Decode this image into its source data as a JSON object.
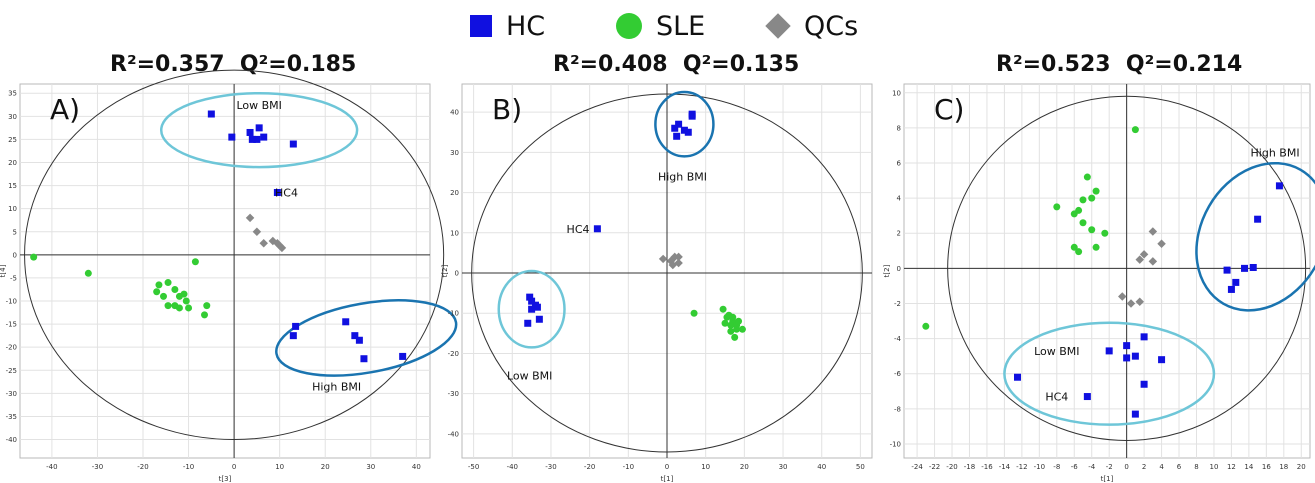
{
  "legend": {
    "items": [
      {
        "label": "HC",
        "color": "#1010e0",
        "shape": "square"
      },
      {
        "label": "SLE",
        "color": "#33cc33",
        "shape": "circle"
      },
      {
        "label": "QCs",
        "color": "#888888",
        "shape": "diamond"
      }
    ]
  },
  "chart_data": [
    {
      "type": "scatter",
      "panel_label": "A)",
      "title": "R²=0.357  Q²=0.185",
      "xlabel": "t[3]",
      "ylabel": "t[4]",
      "xlim": [
        -47,
        43
      ],
      "ylim": [
        -44,
        37
      ],
      "xticks": [
        -40,
        -30,
        -20,
        -10,
        0,
        10,
        20,
        30,
        40
      ],
      "yticks": [
        35,
        30,
        25,
        20,
        15,
        10,
        5,
        0,
        -5,
        -10,
        -15,
        -20,
        -25,
        -30,
        -35,
        -40
      ],
      "grid": true,
      "ellipse_hotelling": {
        "cx": 0,
        "cy": 0,
        "rx": 46,
        "ry": 40
      },
      "series": [
        {
          "name": "HC",
          "points": [
            [
              -5,
              30.5
            ],
            [
              -0.5,
              25.5
            ],
            [
              3.5,
              26.5
            ],
            [
              4,
              25
            ],
            [
              5.5,
              27.5
            ],
            [
              6.5,
              25.5
            ],
            [
              5,
              25
            ],
            [
              13,
              24
            ],
            [
              9.5,
              13.5
            ],
            [
              13.5,
              -15.5
            ],
            [
              13,
              -17.5
            ],
            [
              24.5,
              -14.5
            ],
            [
              26.5,
              -17.5
            ],
            [
              27.5,
              -18.5
            ],
            [
              28.5,
              -22.5
            ],
            [
              37,
              -22
            ]
          ]
        },
        {
          "name": "SLE",
          "points": [
            [
              -44,
              -0.5
            ],
            [
              -32,
              -4
            ],
            [
              -8.5,
              -1.5
            ],
            [
              -17,
              -8
            ],
            [
              -15.5,
              -9
            ],
            [
              -14.5,
              -6
            ],
            [
              -16.5,
              -6.5
            ],
            [
              -13,
              -7.5
            ],
            [
              -12,
              -9
            ],
            [
              -11,
              -8.5
            ],
            [
              -14.5,
              -11
            ],
            [
              -13,
              -11
            ],
            [
              -12,
              -11.5
            ],
            [
              -10.5,
              -10
            ],
            [
              -10,
              -11.5
            ],
            [
              -6,
              -11
            ],
            [
              -6.5,
              -13
            ]
          ]
        },
        {
          "name": "QCs",
          "points": [
            [
              3.5,
              8
            ],
            [
              5,
              5
            ],
            [
              6.5,
              2.5
            ],
            [
              8.5,
              3
            ],
            [
              9.5,
              2.5
            ],
            [
              10.5,
              1.5
            ],
            [
              10,
              2
            ]
          ]
        }
      ],
      "annotations": [
        {
          "text": "Low BMI",
          "x": 5.5,
          "y": 32.5
        },
        {
          "text": "HC4",
          "x": 11.5,
          "y": 13.5
        },
        {
          "text": "High BMI",
          "x": 22.5,
          "y": -28.5
        }
      ],
      "ellipses": [
        {
          "cx": 5.5,
          "cy": 27,
          "rx": 21.5,
          "ry": 8,
          "angle": 0,
          "color": "#6ec6d8"
        },
        {
          "cx": 29,
          "cy": -18,
          "rx": 20,
          "ry": 7.5,
          "angle": -10,
          "color": "#1a74b0"
        }
      ]
    },
    {
      "type": "scatter",
      "panel_label": "B)",
      "title": "R²=0.408  Q²=0.135",
      "xlabel": "t[1]",
      "ylabel": "t[2]",
      "xlim": [
        -53,
        53
      ],
      "ylim": [
        -46,
        47
      ],
      "xticks": [
        -50,
        -40,
        -30,
        -20,
        -10,
        0,
        10,
        20,
        30,
        40,
        50
      ],
      "yticks": [
        40,
        30,
        20,
        10,
        0,
        -10,
        -20,
        -30,
        -40
      ],
      "grid": true,
      "ellipse_hotelling": {
        "cx": 0,
        "cy": 0,
        "rx": 50.5,
        "ry": 44.5
      },
      "series": [
        {
          "name": "HC",
          "points": [
            [
              -18,
              11
            ],
            [
              2,
              36
            ],
            [
              3,
              37
            ],
            [
              2.5,
              34
            ],
            [
              4.5,
              35.5
            ],
            [
              5.5,
              35
            ],
            [
              6.5,
              39
            ],
            [
              6.5,
              39.5
            ],
            [
              -35.5,
              -6
            ],
            [
              -34,
              -8
            ],
            [
              -33.5,
              -8.5
            ],
            [
              -35,
              -9
            ],
            [
              -36,
              -12.5
            ],
            [
              -33,
              -11.5
            ],
            [
              -35,
              -7
            ]
          ]
        },
        {
          "name": "SLE",
          "points": [
            [
              7,
              -10
            ],
            [
              14.5,
              -9
            ],
            [
              15.5,
              -11
            ],
            [
              16,
              -10.5
            ],
            [
              17,
              -12
            ],
            [
              16.5,
              -13
            ],
            [
              18,
              -13
            ],
            [
              15,
              -12.5
            ],
            [
              17,
              -11
            ],
            [
              18.5,
              -12
            ],
            [
              18,
              -14
            ],
            [
              19.5,
              -14
            ],
            [
              16.5,
              -14.5
            ],
            [
              17.5,
              -16
            ]
          ]
        },
        {
          "name": "QCs",
          "points": [
            [
              -1,
              3.5
            ],
            [
              1,
              3
            ],
            [
              2,
              4
            ],
            [
              3,
              4
            ],
            [
              1.5,
              2
            ],
            [
              3,
              2.5
            ]
          ]
        }
      ],
      "annotations": [
        {
          "text": "High BMI",
          "x": 4,
          "y": 24
        },
        {
          "text": "HC4",
          "x": -23,
          "y": 11
        },
        {
          "text": "Low BMI",
          "x": -35.5,
          "y": -25.5
        }
      ],
      "ellipses": [
        {
          "cx": 4.5,
          "cy": 37,
          "rx": 7.5,
          "ry": 8,
          "angle": 0,
          "color": "#1a74b0"
        },
        {
          "cx": -35,
          "cy": -9,
          "rx": 8.5,
          "ry": 9.5,
          "angle": 0,
          "color": "#6ec6d8"
        }
      ]
    },
    {
      "type": "scatter",
      "panel_label": "C)",
      "title": "R²=0.523  Q²=0.214",
      "xlabel": "t[1]",
      "ylabel": "t[2]",
      "xlim": [
        -25.5,
        21
      ],
      "ylim": [
        -10.8,
        10.5
      ],
      "xticks": [
        -24,
        -22,
        -20,
        -18,
        -16,
        -14,
        -12,
        -10,
        -8,
        -6,
        -4,
        -2,
        0,
        2,
        4,
        6,
        8,
        10,
        12,
        14,
        16,
        18,
        20
      ],
      "yticks": [
        10,
        8,
        6,
        4,
        2,
        0,
        -2,
        -4,
        -6,
        -8,
        -10
      ],
      "grid": true,
      "ellipse_hotelling": {
        "cx": 0,
        "cy": 0,
        "rx": 20.5,
        "ry": 9.8
      },
      "series": [
        {
          "name": "HC",
          "points": [
            [
              17.5,
              4.7
            ],
            [
              15,
              2.8
            ],
            [
              11.5,
              -0.1
            ],
            [
              13.5,
              0
            ],
            [
              14.5,
              0.05
            ],
            [
              12.5,
              -0.8
            ],
            [
              12,
              -1.2
            ],
            [
              -12.5,
              -6.2
            ],
            [
              -2,
              -4.7
            ],
            [
              0,
              -4.4
            ],
            [
              2,
              -3.9
            ],
            [
              0,
              -5.1
            ],
            [
              1,
              -5
            ],
            [
              4,
              -5.2
            ],
            [
              2,
              -6.6
            ],
            [
              -4.5,
              -7.3
            ],
            [
              1,
              -8.3
            ]
          ]
        },
        {
          "name": "SLE",
          "points": [
            [
              -23,
              -3.3
            ],
            [
              1,
              7.9
            ],
            [
              -4.5,
              5.2
            ],
            [
              -8,
              3.5
            ],
            [
              -5.5,
              3.3
            ],
            [
              -6,
              3.1
            ],
            [
              -5,
              2.6
            ],
            [
              -4,
              2.2
            ],
            [
              -2.5,
              2
            ],
            [
              -6,
              1.2
            ],
            [
              -5.5,
              0.95
            ],
            [
              -3.5,
              1.2
            ],
            [
              -4,
              4
            ],
            [
              -3.5,
              4.4
            ],
            [
              -5,
              3.9
            ]
          ]
        },
        {
          "name": "QCs",
          "points": [
            [
              3,
              2.1
            ],
            [
              4,
              1.4
            ],
            [
              2,
              0.8
            ],
            [
              1.5,
              0.5
            ],
            [
              3,
              0.4
            ],
            [
              -0.5,
              -1.6
            ],
            [
              0.5,
              -2
            ],
            [
              1.5,
              -1.9
            ]
          ]
        }
      ],
      "annotations": [
        {
          "text": "High BMI",
          "x": 17,
          "y": 6.6
        },
        {
          "text": "Low BMI",
          "x": -8,
          "y": -4.7
        },
        {
          "text": "HC4",
          "x": -8,
          "y": -7.3
        }
      ],
      "ellipses": [
        {
          "cx": 15.5,
          "cy": 1.8,
          "rx": 7,
          "ry": 4.4,
          "angle": 30,
          "color": "#1a74b0"
        },
        {
          "cx": -2,
          "cy": -6,
          "rx": 12,
          "ry": 2.9,
          "angle": 0,
          "color": "#6ec6d8"
        }
      ]
    }
  ]
}
